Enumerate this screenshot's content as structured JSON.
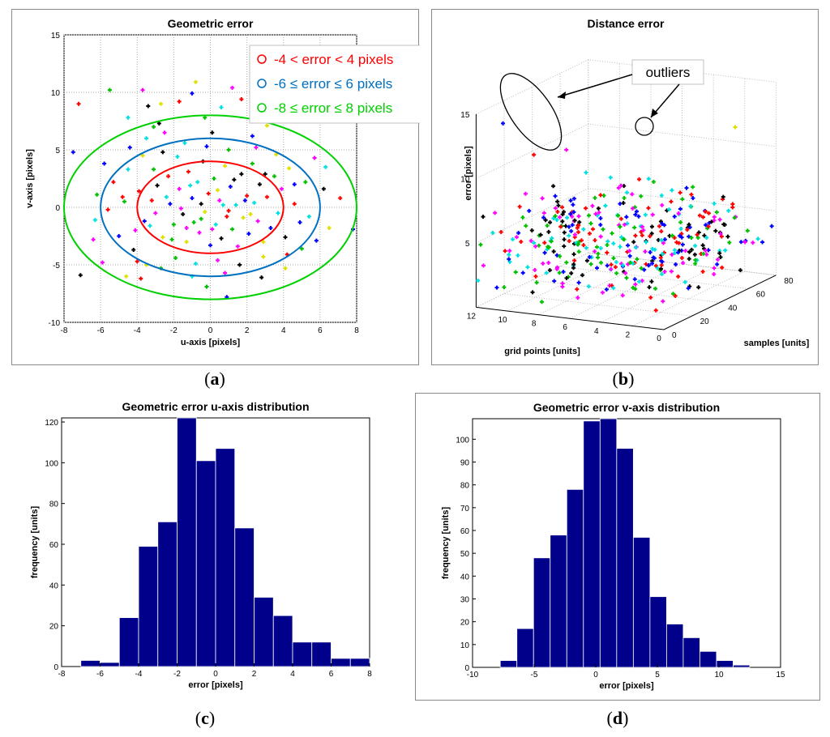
{
  "captions": {
    "a": "a",
    "b": "b",
    "c": "c",
    "d": "d"
  },
  "chart_data": [
    {
      "id": "a",
      "type": "scatter",
      "title": "Geometric error",
      "xlabel": "u-axis [pixels]",
      "ylabel": "v-axis [pixels]",
      "xlim": [
        -8,
        8
      ],
      "ylim": [
        -10,
        15
      ],
      "xticks": [
        -8,
        -6,
        -4,
        -2,
        0,
        2,
        4,
        6,
        8
      ],
      "yticks": [
        -10,
        -5,
        0,
        5,
        10,
        15
      ],
      "grid": true,
      "legend_position": "top-right",
      "point_colors": [
        "#ff0000",
        "#0000ff",
        "#00c000",
        "#00e0e0",
        "#ff00ff",
        "#000000",
        "#e0e000"
      ],
      "circles": [
        {
          "label": "-4 < error < 4 pixels",
          "radius": 4,
          "color": "#ff0000"
        },
        {
          "label": "-6 ≤ error ≤ 6 pixels",
          "radius": 6,
          "color": "#0070c0"
        },
        {
          "label": "-8 ≤ error ≤ 8 pixels",
          "radius": 8,
          "color": "#00d000"
        }
      ],
      "points": [
        [
          -7.2,
          9
        ],
        [
          -7.5,
          4.8
        ],
        [
          -5.5,
          10.2
        ],
        [
          -4.5,
          7.8
        ],
        [
          -3.7,
          10.2
        ],
        [
          -3.4,
          8.8
        ],
        [
          -2.7,
          9
        ],
        [
          -1.7,
          9.2
        ],
        [
          -1.0,
          9.9
        ],
        [
          -0.3,
          7.8
        ],
        [
          0.6,
          8.7
        ],
        [
          1.2,
          10.4
        ],
        [
          -2.8,
          7.3
        ],
        [
          -0.8,
          10.9
        ],
        [
          1.7,
          9.4
        ],
        [
          2.3,
          6.2
        ],
        [
          -6.2,
          1.1
        ],
        [
          -6.3,
          -1.1
        ],
        [
          -5.9,
          -4.8
        ],
        [
          -7.1,
          -5.9
        ],
        [
          -4.6,
          -6.0
        ],
        [
          -4.0,
          -4.7
        ],
        [
          -4.4,
          5.2
        ],
        [
          -3.1,
          7.0
        ],
        [
          -3.5,
          6.0
        ],
        [
          -2.5,
          6.5
        ],
        [
          0.1,
          6.5
        ],
        [
          3.1,
          7.1
        ],
        [
          -5.3,
          2.2
        ],
        [
          -5.0,
          -2.5
        ],
        [
          -4.7,
          0.5
        ],
        [
          -4.5,
          3.3
        ],
        [
          -4.1,
          -2.0
        ],
        [
          -4.2,
          -3.7
        ],
        [
          -3.7,
          4.5
        ],
        [
          -3.9,
          1.4
        ],
        [
          -3.6,
          -1.2
        ],
        [
          -3.1,
          3.3
        ],
        [
          -3.3,
          -1.6
        ],
        [
          -3.0,
          -0.5
        ],
        [
          -2.9,
          1.9
        ],
        [
          -2.6,
          -2.6
        ],
        [
          -2.3,
          2.7
        ],
        [
          -2.2,
          0.3
        ],
        [
          -2.0,
          -1.5
        ],
        [
          -1.8,
          4.4
        ],
        [
          -1.7,
          1.6
        ],
        [
          -1.5,
          -0.6
        ],
        [
          -1.3,
          -3.0
        ],
        [
          -1.2,
          3.1
        ],
        [
          -1.0,
          0.8
        ],
        [
          -0.9,
          -1.3
        ],
        [
          -0.7,
          2.2
        ],
        [
          -0.6,
          -2.2
        ],
        [
          -0.4,
          4.0
        ],
        [
          -0.3,
          -0.4
        ],
        [
          -0.1,
          1.2
        ],
        [
          0.0,
          -3.3
        ],
        [
          0.2,
          2.5
        ],
        [
          0.3,
          -1.5
        ],
        [
          0.5,
          0.6
        ],
        [
          0.6,
          -2.7
        ],
        [
          0.8,
          3.6
        ],
        [
          0.9,
          -0.8
        ],
        [
          1.1,
          1.8
        ],
        [
          1.2,
          -1.9
        ],
        [
          1.4,
          0.2
        ],
        [
          1.5,
          -3.4
        ],
        [
          1.7,
          2.9
        ],
        [
          1.8,
          -0.9
        ],
        [
          2.0,
          1.0
        ],
        [
          2.1,
          -2.3
        ],
        [
          2.3,
          3.8
        ],
        [
          2.4,
          0.4
        ],
        [
          2.6,
          -1.2
        ],
        [
          2.7,
          2.0
        ],
        [
          2.9,
          -3.0
        ],
        [
          3.1,
          0.9
        ],
        [
          3.3,
          -1.8
        ],
        [
          3.5,
          2.7
        ],
        [
          3.7,
          -0.5
        ],
        [
          3.9,
          1.6
        ],
        [
          4.1,
          -2.6
        ],
        [
          4.3,
          3.4
        ],
        [
          4.6,
          0.3
        ],
        [
          4.9,
          -1.3
        ],
        [
          5.2,
          2.2
        ],
        [
          5.4,
          -0.8
        ],
        [
          5.7,
          4.3
        ],
        [
          6.2,
          1.6
        ],
        [
          6.5,
          -1.8
        ],
        [
          7.1,
          0.8
        ],
        [
          7.8,
          -1.9
        ],
        [
          -1.9,
          -4.4
        ],
        [
          -0.8,
          -4.9
        ],
        [
          0.4,
          -4.6
        ],
        [
          1.6,
          -5.0
        ],
        [
          2.9,
          -4.3
        ],
        [
          4.2,
          -4.1
        ],
        [
          5.8,
          -2.9
        ],
        [
          -2.7,
          -5.3
        ],
        [
          -1.0,
          -6.0
        ],
        [
          0.8,
          -5.7
        ],
        [
          2.8,
          -6.1
        ],
        [
          4.1,
          -5.3
        ],
        [
          -3.8,
          -6.2
        ],
        [
          0.9,
          -7.8
        ],
        [
          -0.2,
          -6.9
        ],
        [
          -2.4,
          0.9
        ],
        [
          -1.6,
          -0.1
        ],
        [
          -0.5,
          0.3
        ],
        [
          0.4,
          1.5
        ],
        [
          1.0,
          -0.3
        ],
        [
          1.9,
          0.6
        ],
        [
          -2.1,
          -2.8
        ],
        [
          -1.1,
          1.9
        ],
        [
          0.1,
          -1.9
        ],
        [
          1.3,
          2.4
        ],
        [
          2.2,
          -0.6
        ],
        [
          -3.2,
          0.6
        ],
        [
          -0.2,
          5.3
        ],
        [
          1.0,
          5.0
        ],
        [
          -1.4,
          5.6
        ],
        [
          2.5,
          5.2
        ],
        [
          -2.6,
          4.8
        ],
        [
          3.6,
          4.6
        ],
        [
          -5.6,
          -0.2
        ],
        [
          -5.8,
          3.8
        ],
        [
          5.0,
          -3.6
        ],
        [
          6.3,
          3.5
        ],
        [
          -6.4,
          -2.8
        ],
        [
          3.0,
          2.9
        ],
        [
          -3.5,
          -5.0
        ],
        [
          -4.8,
          0.9
        ],
        [
          4.6,
          2.0
        ],
        [
          -0.5,
          -1.0
        ],
        [
          0.7,
          0.2
        ],
        [
          -1.3,
          -1.8
        ]
      ]
    },
    {
      "id": "b",
      "type": "scatter",
      "title": "Distance error",
      "xlabel": "grid points [units]",
      "ylabel": "error [pixels]",
      "zlabel": "samples [units]",
      "xlim": [
        0,
        12
      ],
      "ylim": [
        0,
        80
      ],
      "zlim": [
        0,
        15
      ],
      "xticks": [
        0,
        2,
        4,
        6,
        8,
        10,
        12
      ],
      "yticks": [
        0,
        20,
        40,
        60,
        80
      ],
      "zticks": [
        5,
        10,
        15
      ],
      "grid": true,
      "annotation": "outliers",
      "outliers": [
        {
          "grid": 11,
          "sample": 8,
          "error": 14,
          "color": "#0000ff"
        },
        {
          "grid": 11,
          "sample": 30,
          "error": 10.4,
          "color": "#ff0000"
        },
        {
          "grid": 10,
          "sample": 42,
          "error": 10.3,
          "color": "#ff00ff"
        },
        {
          "grid": 1,
          "sample": 62,
          "error": 12.3,
          "color": "#e0e000"
        }
      ],
      "point_colors": [
        "#ff0000",
        "#0000ff",
        "#00c000",
        "#00e0e0",
        "#ff00ff",
        "#000000"
      ]
    },
    {
      "id": "c",
      "type": "bar",
      "title": "Geometric error u-axis distribution",
      "xlabel": "error [pixels]",
      "ylabel": "frequency [units]",
      "xlim": [
        -8,
        8
      ],
      "ylim": [
        0,
        122
      ],
      "xticks": [
        -8,
        -6,
        -4,
        -2,
        0,
        2,
        4,
        6,
        8
      ],
      "yticks": [
        0,
        20,
        40,
        60,
        80,
        100,
        120
      ],
      "bin_start": -7.0,
      "bin_width": 1.0,
      "values": [
        3,
        2,
        24,
        59,
        71,
        122,
        101,
        107,
        68,
        34,
        25,
        12,
        12,
        4,
        4
      ],
      "bar_color": "#00008b"
    },
    {
      "id": "d",
      "type": "bar",
      "title": "Geometric error v-axis distribution",
      "xlabel": "error [pixels]",
      "ylabel": "frequency [units]",
      "xlim": [
        -10,
        15
      ],
      "ylim": [
        0,
        109
      ],
      "xticks": [
        -10,
        -5,
        0,
        5,
        10,
        15
      ],
      "yticks": [
        0,
        10,
        20,
        30,
        40,
        50,
        60,
        70,
        80,
        90,
        100
      ],
      "bin_start": -7.75,
      "bin_width": 1.35,
      "values": [
        3,
        17,
        48,
        58,
        78,
        108,
        109,
        96,
        57,
        31,
        19,
        13,
        7,
        3,
        1
      ],
      "bar_color": "#00008b"
    }
  ]
}
